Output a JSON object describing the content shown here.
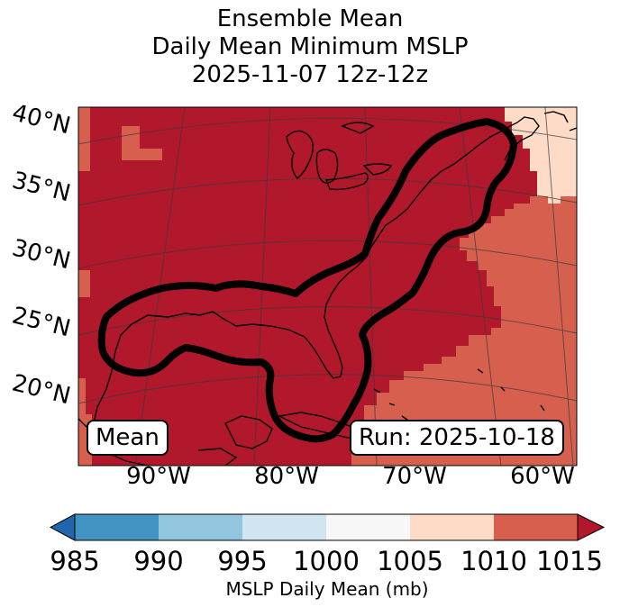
{
  "title": {
    "line1": "Ensemble Mean",
    "line2": "Daily Mean Minimum MSLP",
    "line3": "2025-11-07 12z-12z"
  },
  "map": {
    "lat_labels": [
      "40°N",
      "35°N",
      "30°N",
      "25°N",
      "20°N"
    ],
    "lon_labels": [
      "90°W",
      "80°W",
      "70°W",
      "60°W"
    ],
    "left_box": "Mean",
    "right_box": "Run: 2025-10-18",
    "colors": {
      "band_1010_1015": "#b2182b",
      "band_1005_1010": "#d6604d",
      "band_1000_1005": "#fddbc7",
      "contour": "#000000"
    }
  },
  "colorbar": {
    "ticks": [
      "985",
      "990",
      "995",
      "1000",
      "1005",
      "1010",
      "1015"
    ],
    "label": "MSLP Daily Mean (mb)",
    "colors": [
      "#2166ac",
      "#4393c3",
      "#92c5de",
      "#d1e5f0",
      "#f7f7f7",
      "#fddbc7",
      "#d6604d",
      "#b2182b"
    ]
  }
}
